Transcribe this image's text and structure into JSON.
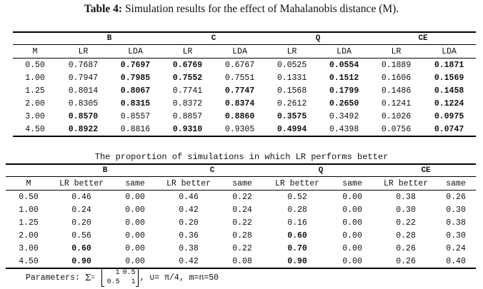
{
  "title": {
    "bold": "Table 4:",
    "text": "Simulation results for the effect of Mahalanobis distance (M)."
  },
  "table1": {
    "groups": [
      "B",
      "C",
      "Q",
      "CE"
    ],
    "header": [
      "M",
      "LR",
      "LDA",
      "LR",
      "LDA",
      "LR",
      "LDA",
      "LR",
      "LDA"
    ],
    "rows": [
      [
        "0.50",
        "0.7687",
        "0.7697",
        "0.6769",
        "0.6767",
        "0.0525",
        "0.0554",
        "0.1889",
        "0.1871"
      ],
      [
        "1.00",
        "0.7947",
        "0.7985",
        "0.7552",
        "0.7551",
        "0.1331",
        "0.1512",
        "0.1606",
        "0.1569"
      ],
      [
        "1.25",
        "0.8014",
        "0.8067",
        "0.7741",
        "0.7747",
        "0.1568",
        "0.1799",
        "0.1486",
        "0.1458"
      ],
      [
        "2.00",
        "0.8305",
        "0.8315",
        "0.8372",
        "0.8374",
        "0.2612",
        "0.2650",
        "0.1241",
        "0.1224"
      ],
      [
        "3.00",
        "0.8570",
        "0.8557",
        "0.8857",
        "0.8860",
        "0.3575",
        "0.3492",
        "0.1026",
        "0.0975"
      ],
      [
        "4.50",
        "0.8922",
        "0.8816",
        "0.9310",
        "0.9305",
        "0.4994",
        "0.4398",
        "0.0756",
        "0.0747"
      ]
    ],
    "bold": [
      [
        false,
        false,
        true,
        true,
        false,
        false,
        true,
        false,
        true
      ],
      [
        false,
        false,
        true,
        true,
        false,
        false,
        true,
        false,
        true
      ],
      [
        false,
        false,
        true,
        false,
        true,
        false,
        true,
        false,
        true
      ],
      [
        false,
        false,
        true,
        false,
        true,
        false,
        true,
        false,
        true
      ],
      [
        false,
        true,
        false,
        false,
        true,
        true,
        false,
        false,
        true
      ],
      [
        false,
        true,
        false,
        true,
        false,
        true,
        false,
        false,
        true
      ]
    ]
  },
  "subtitle": "The proportion of simulations in which LR performs better",
  "table2": {
    "groups": [
      "B",
      "C",
      "Q",
      "CE"
    ],
    "header": [
      "M",
      "LR better",
      "same",
      "LR better",
      "same",
      "LR better",
      "same",
      "LR better",
      "same"
    ],
    "rows": [
      [
        "0.50",
        "0.46",
        "0.00",
        "0.46",
        "0.22",
        "0.52",
        "0.00",
        "0.38",
        "0.26"
      ],
      [
        "1.00",
        "0.24",
        "0.00",
        "0.42",
        "0.24",
        "0.28",
        "0.00",
        "0.30",
        "0.30"
      ],
      [
        "1.25",
        "0.20",
        "0.00",
        "0.20",
        "0.22",
        "0.16",
        "0.00",
        "0.22",
        "0.38"
      ],
      [
        "2.00",
        "0.56",
        "0.00",
        "0.36",
        "0.28",
        "0.60",
        "0.00",
        "0.28",
        "0.30"
      ],
      [
        "3.00",
        "0.60",
        "0.00",
        "0.38",
        "0.22",
        "0.70",
        "0.00",
        "0.26",
        "0.24"
      ],
      [
        "4.50",
        "0.90",
        "0.00",
        "0.42",
        "0.08",
        "0.90",
        "0.00",
        "0.26",
        "0.40"
      ]
    ],
    "bold": [
      [
        false,
        false,
        false,
        false,
        false,
        false,
        false,
        false,
        false
      ],
      [
        false,
        false,
        false,
        false,
        false,
        false,
        false,
        false,
        false
      ],
      [
        false,
        false,
        false,
        false,
        false,
        false,
        false,
        false,
        false
      ],
      [
        false,
        false,
        false,
        false,
        false,
        true,
        false,
        false,
        false
      ],
      [
        false,
        true,
        false,
        false,
        false,
        true,
        false,
        false,
        false
      ],
      [
        false,
        true,
        false,
        false,
        false,
        true,
        false,
        false,
        false
      ]
    ]
  },
  "params": {
    "label": "Parameters:",
    "sigma": "Σ",
    "eq": "=",
    "matrix": [
      [
        "1",
        "0.5"
      ],
      [
        "0.5",
        "1"
      ]
    ],
    "rest": ", υ= π/4,  m=n=50"
  }
}
